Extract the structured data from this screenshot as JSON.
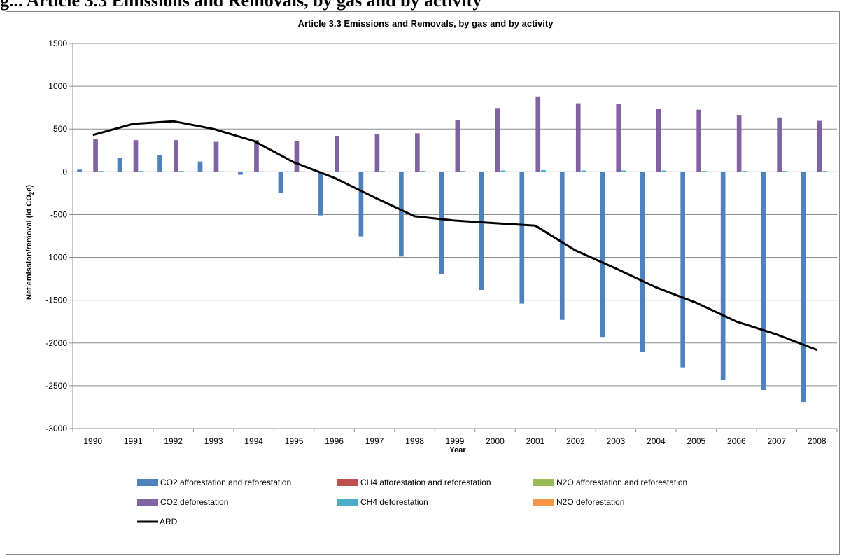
{
  "header": {
    "caption_fragment": "g... Article 3.3 Emissions and Removals, by gas and by activity"
  },
  "chart_data": {
    "type": "bar",
    "title": "Article 3.3 Emissions and Removals, by gas and by activity",
    "xlabel": "Year",
    "ylabel_parts": [
      "Net emission/removal (kt CO",
      "2",
      "e)"
    ],
    "ylim": [
      -3000,
      1500
    ],
    "ytick_step": 500,
    "grid": true,
    "legend_position": "bottom",
    "categories": [
      "1990",
      "1991",
      "1992",
      "1993",
      "1994",
      "1995",
      "1996",
      "1997",
      "1998",
      "1999",
      "2000",
      "2001",
      "2002",
      "2003",
      "2004",
      "2005",
      "2006",
      "2007",
      "2008"
    ],
    "series": [
      {
        "name": "CO2 afforestation and reforestation",
        "kind": "bar",
        "color": "#4F81BD",
        "values": [
          25,
          165,
          195,
          120,
          -35,
          -250,
          -510,
          -755,
          -990,
          -1195,
          -1380,
          -1540,
          -1730,
          -1930,
          -2105,
          -2285,
          -2430,
          -2550,
          -2690
        ]
      },
      {
        "name": "CH4 afforestation and reforestation",
        "kind": "bar",
        "color": "#C0504D",
        "values": [
          0,
          0,
          0,
          0,
          0,
          0,
          0,
          0,
          0,
          0,
          0,
          0,
          0,
          0,
          0,
          0,
          0,
          0,
          0
        ]
      },
      {
        "name": "N2O afforestation and reforestation",
        "kind": "bar",
        "color": "#9BBB59",
        "values": [
          0,
          0,
          0,
          0,
          0,
          0,
          0,
          0,
          0,
          0,
          0,
          0,
          0,
          0,
          0,
          0,
          0,
          0,
          0
        ]
      },
      {
        "name": "CO2 deforestation",
        "kind": "bar",
        "color": "#8064A2",
        "values": [
          380,
          370,
          370,
          350,
          370,
          360,
          420,
          440,
          450,
          605,
          745,
          880,
          800,
          790,
          735,
          725,
          665,
          635,
          595
        ]
      },
      {
        "name": "CH4 deforestation",
        "kind": "bar",
        "color": "#4BACC6",
        "values": [
          10,
          10,
          10,
          5,
          5,
          5,
          5,
          10,
          10,
          10,
          15,
          20,
          15,
          15,
          15,
          10,
          10,
          10,
          10
        ]
      },
      {
        "name": "N2O deforestation",
        "kind": "bar",
        "color": "#F79646",
        "values": [
          2,
          2,
          2,
          2,
          2,
          2,
          2,
          2,
          2,
          2,
          3,
          3,
          3,
          3,
          3,
          2,
          2,
          2,
          2
        ]
      },
      {
        "name": "ARD",
        "kind": "line",
        "color": "#000000",
        "values": [
          430,
          560,
          590,
          500,
          360,
          110,
          -70,
          -300,
          -520,
          -570,
          -600,
          -630,
          -920,
          -1130,
          -1350,
          -1530,
          -1750,
          -1900,
          -2080
        ]
      }
    ],
    "legend_rows": [
      [
        "CO2 afforestation and reforestation",
        "CH4 afforestation and reforestation",
        "N2O afforestation and reforestation"
      ],
      [
        "CO2 deforestation",
        "CH4 deforestation",
        "N2O deforestation"
      ],
      [
        "ARD"
      ]
    ]
  }
}
